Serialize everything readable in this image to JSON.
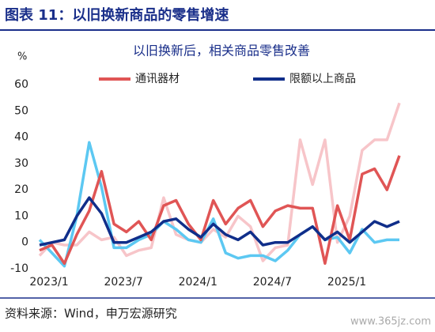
{
  "header": {
    "title": "图表 11：以旧换新商品的零售增速"
  },
  "chart_data": {
    "type": "line",
    "title": "以旧换新后，相关商品零售改善",
    "y_unit": "%",
    "categories": [
      "2023/1",
      null,
      null,
      null,
      null,
      null,
      "2023/7",
      null,
      null,
      null,
      null,
      null,
      "2024/1",
      null,
      null,
      null,
      null,
      null,
      "2024/7",
      null,
      null,
      null,
      null,
      null,
      "2025/1",
      null,
      null,
      null,
      null,
      null
    ],
    "series": [
      {
        "color": "#f7c5c9",
        "values": [
          -5,
          0,
          -1,
          -1,
          4,
          1,
          2,
          -5,
          -3,
          -2,
          17,
          3,
          1,
          0,
          5,
          2,
          10,
          6,
          -7,
          -2,
          -1,
          39,
          22,
          39,
          0,
          10,
          35,
          39,
          39,
          53
        ]
      },
      {
        "color": "#5cc8f2",
        "values": [
          1,
          -4,
          -9,
          10,
          38,
          21,
          -2,
          -2,
          1,
          3,
          8,
          5,
          1,
          0,
          9,
          -4,
          -6,
          -5,
          -5,
          -7,
          -3,
          3,
          6,
          1,
          2,
          -4,
          5,
          0,
          1,
          1
        ]
      },
      {
        "name": "通讯器材",
        "color": "#e05555",
        "values": [
          -3,
          -1,
          -8,
          3,
          12,
          27,
          7,
          4,
          8,
          1,
          14,
          16,
          7,
          1,
          16,
          7,
          13,
          16,
          6,
          12,
          14,
          13,
          13,
          -8,
          14,
          1,
          26,
          28,
          20,
          33
        ]
      },
      {
        "name": "限额以上商品",
        "color": "#102e8a",
        "values": [
          -1,
          0,
          1,
          10,
          17,
          11,
          0,
          0,
          2,
          4,
          8,
          9,
          5,
          2,
          7,
          3,
          1,
          4,
          -1,
          0,
          0,
          3,
          6,
          1,
          4,
          0,
          4,
          8,
          6,
          8
        ]
      }
    ],
    "ylim": [
      -10,
      60
    ],
    "yticks": [
      -10,
      0,
      10,
      20,
      30,
      40,
      50,
      60
    ],
    "grid": false
  },
  "footer": {
    "source": "资料来源：Wind，申万宏源研究",
    "watermark": "www.365jz.com"
  }
}
